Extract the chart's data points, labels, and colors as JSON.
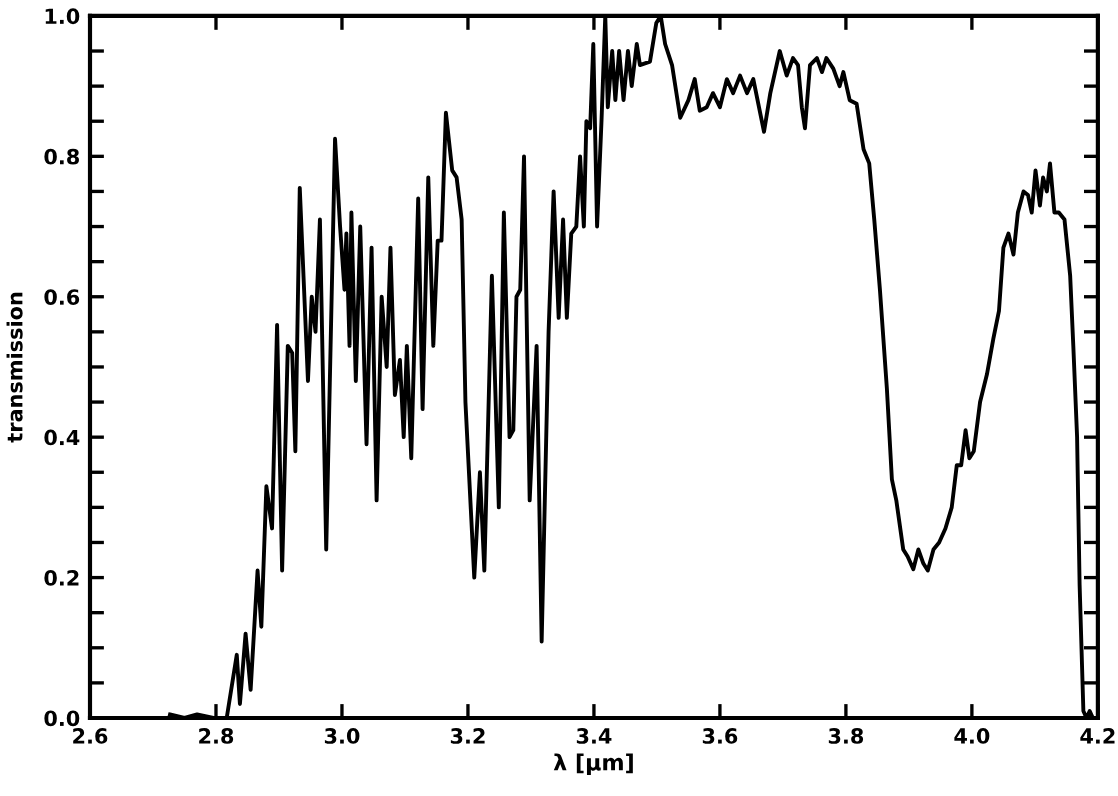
{
  "chart_data": {
    "type": "line",
    "xlabel": "λ [μm]",
    "ylabel": "transmission",
    "xlim": [
      2.6,
      4.2
    ],
    "ylim": [
      0.0,
      1.0
    ],
    "xticks": [
      {
        "value": 2.6,
        "label": "2.6"
      },
      {
        "value": 2.8,
        "label": "2.8"
      },
      {
        "value": 3.0,
        "label": "3.0"
      },
      {
        "value": 3.2,
        "label": "3.2"
      },
      {
        "value": 3.4,
        "label": "3.4"
      },
      {
        "value": 3.6,
        "label": "3.6"
      },
      {
        "value": 3.8,
        "label": "3.8"
      },
      {
        "value": 4.0,
        "label": "4.0"
      },
      {
        "value": 4.2,
        "label": "4.2"
      }
    ],
    "yticks": [
      {
        "value": 0.0,
        "label": "0.0"
      },
      {
        "value": 0.05,
        "label": null
      },
      {
        "value": 0.1,
        "label": null
      },
      {
        "value": 0.15,
        "label": null
      },
      {
        "value": 0.2,
        "label": "0.2"
      },
      {
        "value": 0.25,
        "label": null
      },
      {
        "value": 0.3,
        "label": null
      },
      {
        "value": 0.35,
        "label": null
      },
      {
        "value": 0.4,
        "label": "0.4"
      },
      {
        "value": 0.45,
        "label": null
      },
      {
        "value": 0.5,
        "label": null
      },
      {
        "value": 0.55,
        "label": null
      },
      {
        "value": 0.6,
        "label": "0.6"
      },
      {
        "value": 0.65,
        "label": null
      },
      {
        "value": 0.7,
        "label": null
      },
      {
        "value": 0.75,
        "label": null
      },
      {
        "value": 0.8,
        "label": "0.8"
      },
      {
        "value": 0.85,
        "label": null
      },
      {
        "value": 0.9,
        "label": null
      },
      {
        "value": 0.95,
        "label": null
      },
      {
        "value": 1.0,
        "label": "1.0"
      }
    ],
    "grid": false,
    "legend": false,
    "marker": "none",
    "line_style": "solid",
    "series": [
      {
        "color": "#000000",
        "x": [
          2.727,
          2.75,
          2.77,
          2.796,
          2.817,
          2.833,
          2.838,
          2.847,
          2.855,
          2.866,
          2.872,
          2.88,
          2.889,
          2.897,
          2.905,
          2.914,
          2.921,
          2.926,
          2.933,
          2.946,
          2.952,
          2.958,
          2.965,
          2.975,
          2.989,
          2.997,
          3.004,
          3.007,
          3.012,
          3.015,
          3.022,
          3.029,
          3.039,
          3.047,
          3.055,
          3.063,
          3.071,
          3.077,
          3.084,
          3.092,
          3.098,
          3.103,
          3.11,
          3.121,
          3.128,
          3.137,
          3.145,
          3.152,
          3.158,
          3.165,
          3.175,
          3.182,
          3.19,
          3.196,
          3.21,
          3.219,
          3.226,
          3.238,
          3.249,
          3.257,
          3.266,
          3.272,
          3.277,
          3.283,
          3.289,
          3.298,
          3.309,
          3.317,
          3.328,
          3.336,
          3.344,
          3.351,
          3.357,
          3.364,
          3.372,
          3.378,
          3.384,
          3.388,
          3.394,
          3.399,
          3.405,
          3.412,
          3.418,
          3.422,
          3.429,
          3.434,
          3.44,
          3.447,
          3.454,
          3.46,
          3.468,
          3.473,
          3.489,
          3.499,
          3.506,
          3.513,
          3.524,
          3.537,
          3.55,
          3.56,
          3.568,
          3.579,
          3.589,
          3.6,
          3.611,
          3.621,
          3.632,
          3.643,
          3.653,
          3.662,
          3.67,
          3.68,
          3.695,
          3.706,
          3.716,
          3.724,
          3.73,
          3.735,
          3.743,
          3.754,
          3.762,
          3.769,
          3.78,
          3.79,
          3.796,
          3.806,
          3.817,
          3.828,
          3.837,
          3.845,
          3.854,
          3.865,
          3.873,
          3.88,
          3.891,
          3.898,
          3.907,
          3.915,
          3.923,
          3.93,
          3.939,
          3.948,
          3.958,
          3.968,
          3.976,
          3.983,
          3.99,
          3.996,
          4.003,
          4.013,
          4.024,
          4.034,
          4.043,
          4.05,
          4.058,
          4.066,
          4.073,
          4.082,
          4.089,
          4.095,
          4.101,
          4.108,
          4.113,
          4.119,
          4.124,
          4.131,
          4.138,
          4.147,
          4.156,
          4.161,
          4.167,
          4.171,
          4.177,
          4.182,
          4.187,
          4.192
        ],
        "values": [
          0.005,
          0.0,
          0.005,
          0.0,
          0.0,
          0.09,
          0.02,
          0.12,
          0.04,
          0.21,
          0.13,
          0.33,
          0.27,
          0.56,
          0.21,
          0.53,
          0.52,
          0.38,
          0.755,
          0.48,
          0.6,
          0.55,
          0.71,
          0.24,
          0.825,
          0.7,
          0.61,
          0.69,
          0.53,
          0.72,
          0.48,
          0.7,
          0.39,
          0.67,
          0.31,
          0.6,
          0.5,
          0.67,
          0.46,
          0.51,
          0.4,
          0.53,
          0.37,
          0.74,
          0.44,
          0.77,
          0.53,
          0.68,
          0.68,
          0.862,
          0.78,
          0.77,
          0.71,
          0.45,
          0.2,
          0.35,
          0.21,
          0.63,
          0.3,
          0.72,
          0.4,
          0.41,
          0.6,
          0.61,
          0.8,
          0.31,
          0.53,
          0.109,
          0.55,
          0.75,
          0.57,
          0.71,
          0.57,
          0.69,
          0.7,
          0.8,
          0.7,
          0.85,
          0.84,
          0.96,
          0.7,
          0.85,
          1.0,
          0.87,
          0.95,
          0.88,
          0.95,
          0.88,
          0.95,
          0.9,
          0.96,
          0.93,
          0.935,
          0.99,
          1.0,
          0.96,
          0.93,
          0.855,
          0.88,
          0.91,
          0.865,
          0.87,
          0.89,
          0.87,
          0.91,
          0.89,
          0.915,
          0.89,
          0.91,
          0.87,
          0.835,
          0.89,
          0.95,
          0.915,
          0.94,
          0.93,
          0.87,
          0.84,
          0.93,
          0.94,
          0.92,
          0.94,
          0.925,
          0.9,
          0.92,
          0.88,
          0.875,
          0.81,
          0.79,
          0.71,
          0.61,
          0.47,
          0.34,
          0.31,
          0.24,
          0.23,
          0.212,
          0.24,
          0.22,
          0.21,
          0.24,
          0.25,
          0.27,
          0.3,
          0.36,
          0.36,
          0.41,
          0.37,
          0.38,
          0.45,
          0.49,
          0.54,
          0.58,
          0.67,
          0.69,
          0.66,
          0.72,
          0.75,
          0.745,
          0.72,
          0.78,
          0.73,
          0.77,
          0.75,
          0.79,
          0.72,
          0.72,
          0.71,
          0.63,
          0.53,
          0.4,
          0.19,
          0.01,
          0.0,
          0.01,
          0.0
        ]
      }
    ]
  }
}
